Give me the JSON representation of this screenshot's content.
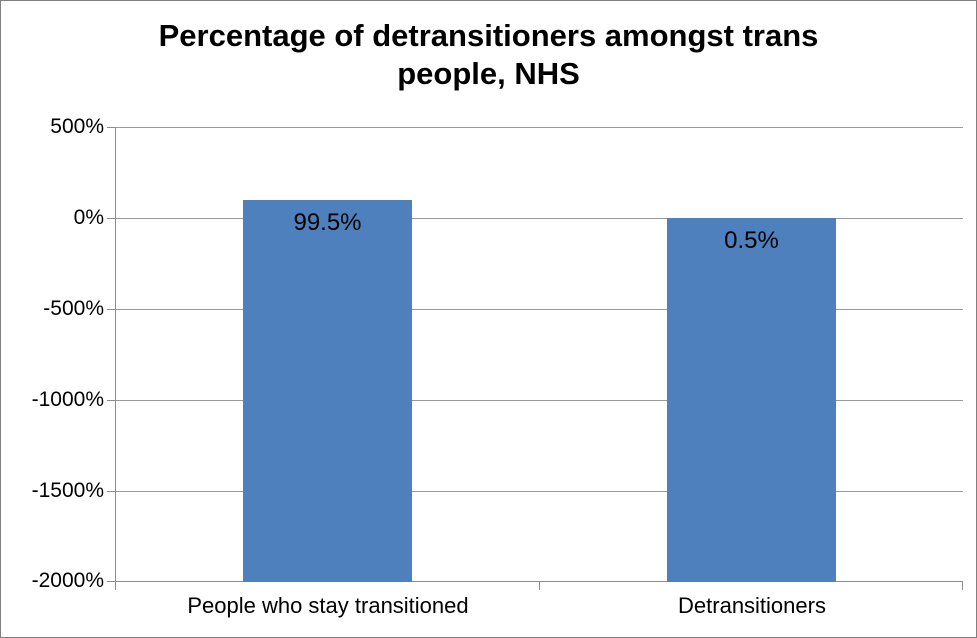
{
  "title": {
    "lines": [
      "Percentage of detransitioners amongst trans",
      "people, NHS"
    ]
  },
  "chart_data": {
    "type": "bar",
    "title": "Percentage of detransitioners amongst trans people, NHS",
    "categories": [
      "People who stay transitioned",
      "Detransitioners"
    ],
    "values": [
      99.5,
      0.5
    ],
    "data_labels": [
      "99.5%",
      "0.5%"
    ],
    "xlabel": "",
    "ylabel": "",
    "y_axis": {
      "min": -2000,
      "max": 500,
      "step": 500,
      "unit": "%",
      "tick_values": [
        500,
        0,
        -500,
        -1000,
        -1500,
        -2000
      ],
      "tick_labels": [
        "500%",
        "0%",
        "-500%",
        "-1000%",
        "-1500%",
        "-2000%"
      ]
    },
    "bar_baseline": -2000,
    "grid": true,
    "legend": "none",
    "colors": {
      "bar": "#4d80bd",
      "gridline": "#9a9a9a",
      "axis": "#8c8c8c",
      "text": "#000000",
      "background": "#ffffff",
      "border": "#808080"
    }
  }
}
